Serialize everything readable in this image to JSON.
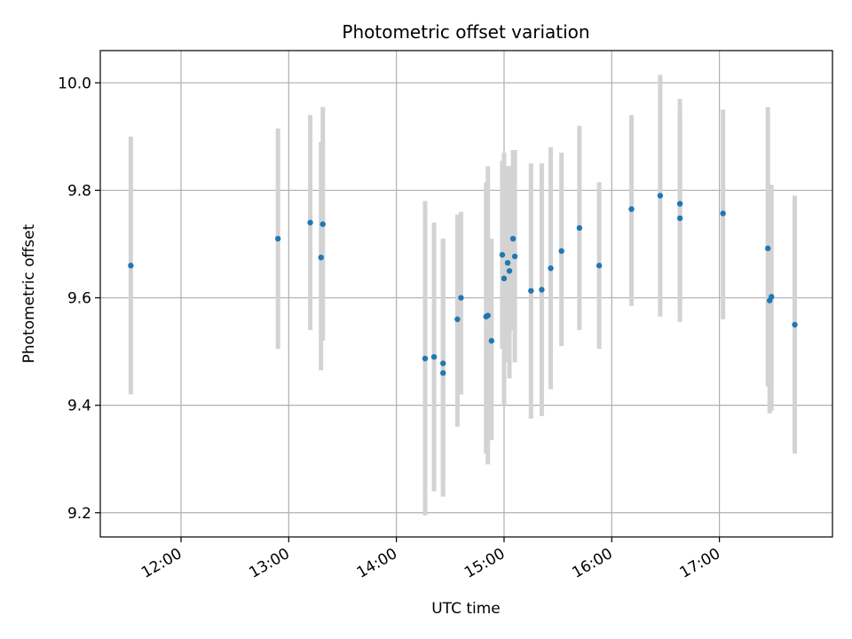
{
  "chart_data": {
    "type": "scatter",
    "title": "Photometric offset variation",
    "xlabel": "UTC time",
    "ylabel": "Photometric offset",
    "x_is_time": true,
    "xlim": [
      "11:15",
      "18:03"
    ],
    "ylim": [
      9.155,
      10.06
    ],
    "x_ticks": [
      "12:00",
      "13:00",
      "14:00",
      "15:00",
      "16:00",
      "17:00"
    ],
    "y_ticks": [
      9.2,
      9.4,
      9.6,
      9.8,
      10.0
    ],
    "y_tick_labels": [
      "9.2",
      "9.4",
      "9.6",
      "9.8",
      "10.0"
    ],
    "grid": true,
    "colors": {
      "point": "#1f77b4",
      "errorbar": "#d3d3d3",
      "grid": "#b0b0b0"
    },
    "points": [
      {
        "t": "11:32",
        "y": 9.66,
        "lo": 9.42,
        "hi": 9.9
      },
      {
        "t": "12:54",
        "y": 9.71,
        "lo": 9.505,
        "hi": 9.915
      },
      {
        "t": "13:12",
        "y": 9.74,
        "lo": 9.54,
        "hi": 9.94
      },
      {
        "t": "13:18",
        "y": 9.675,
        "lo": 9.465,
        "hi": 9.89
      },
      {
        "t": "13:19",
        "y": 9.737,
        "lo": 9.52,
        "hi": 9.955
      },
      {
        "t": "14:16",
        "y": 9.487,
        "lo": 9.195,
        "hi": 9.78
      },
      {
        "t": "14:21",
        "y": 9.49,
        "lo": 9.24,
        "hi": 9.74
      },
      {
        "t": "14:26",
        "y": 9.46,
        "lo": 9.23,
        "hi": 9.71
      },
      {
        "t": "14:26",
        "y": 9.478,
        "lo": 9.25,
        "hi": 9.71
      },
      {
        "t": "14:34",
        "y": 9.56,
        "lo": 9.36,
        "hi": 9.755
      },
      {
        "t": "14:36",
        "y": 9.6,
        "lo": 9.42,
        "hi": 9.76
      },
      {
        "t": "14:50",
        "y": 9.565,
        "lo": 9.31,
        "hi": 9.815
      },
      {
        "t": "14:51",
        "y": 9.567,
        "lo": 9.29,
        "hi": 9.845
      },
      {
        "t": "14:53",
        "y": 9.52,
        "lo": 9.335,
        "hi": 9.71
      },
      {
        "t": "14:59",
        "y": 9.68,
        "lo": 9.505,
        "hi": 9.855
      },
      {
        "t": "15:00",
        "y": 9.636,
        "lo": 9.4,
        "hi": 9.87
      },
      {
        "t": "15:02",
        "y": 9.665,
        "lo": 9.48,
        "hi": 9.845
      },
      {
        "t": "15:03",
        "y": 9.65,
        "lo": 9.45,
        "hi": 9.845
      },
      {
        "t": "15:05",
        "y": 9.71,
        "lo": 9.54,
        "hi": 9.875
      },
      {
        "t": "15:06",
        "y": 9.677,
        "lo": 9.48,
        "hi": 9.875
      },
      {
        "t": "15:15",
        "y": 9.613,
        "lo": 9.375,
        "hi": 9.85
      },
      {
        "t": "15:21",
        "y": 9.615,
        "lo": 9.38,
        "hi": 9.85
      },
      {
        "t": "15:26",
        "y": 9.655,
        "lo": 9.43,
        "hi": 9.88
      },
      {
        "t": "15:32",
        "y": 9.687,
        "lo": 9.51,
        "hi": 9.87
      },
      {
        "t": "15:42",
        "y": 9.73,
        "lo": 9.54,
        "hi": 9.92
      },
      {
        "t": "15:53",
        "y": 9.66,
        "lo": 9.505,
        "hi": 9.815
      },
      {
        "t": "16:11",
        "y": 9.765,
        "lo": 9.585,
        "hi": 9.94
      },
      {
        "t": "16:27",
        "y": 9.79,
        "lo": 9.565,
        "hi": 10.015
      },
      {
        "t": "16:38",
        "y": 9.775,
        "lo": 9.585,
        "hi": 9.97
      },
      {
        "t": "16:38",
        "y": 9.748,
        "lo": 9.555,
        "hi": 9.94
      },
      {
        "t": "17:02",
        "y": 9.757,
        "lo": 9.56,
        "hi": 9.95
      },
      {
        "t": "17:27",
        "y": 9.692,
        "lo": 9.435,
        "hi": 9.955
      },
      {
        "t": "17:28",
        "y": 9.595,
        "lo": 9.385,
        "hi": 9.81
      },
      {
        "t": "17:29",
        "y": 9.602,
        "lo": 9.39,
        "hi": 9.81
      },
      {
        "t": "17:42",
        "y": 9.55,
        "lo": 9.31,
        "hi": 9.79
      }
    ]
  }
}
